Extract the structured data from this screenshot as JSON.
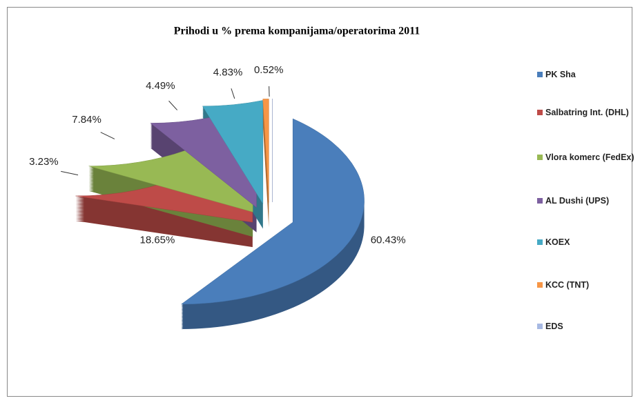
{
  "chart_data": {
    "type": "pie",
    "title": "Prihodi u % prema kompanijama/operatorima 2011",
    "categories": [
      "PK Sha",
      "Salbatring Int. (DHL)",
      "Vlora komerc (FedEx)",
      "AL Dushi (UPS)",
      "KOEX",
      "KCC (TNT)",
      "EDS"
    ],
    "values": [
      60.43,
      18.65,
      3.23,
      7.84,
      4.49,
      4.83,
      0.52
    ],
    "value_labels": [
      "60.43%",
      "18.65%",
      "3.23%",
      "7.84%",
      "4.49%",
      "4.83%",
      "0.52%"
    ],
    "colors": [
      "#4a7ebb",
      "#be4b48",
      "#98b954",
      "#7d60a0",
      "#46aac5",
      "#f79646",
      "#a7b9e3"
    ],
    "legend": "right"
  }
}
